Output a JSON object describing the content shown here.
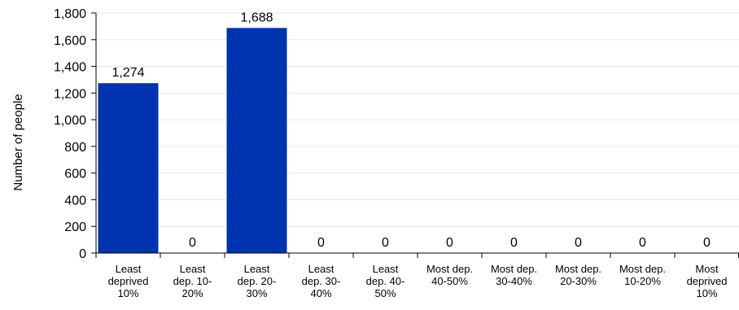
{
  "chart_data": {
    "type": "bar",
    "title": "",
    "xlabel": "",
    "ylabel": "Number of people",
    "ylim": [
      0,
      1800
    ],
    "ytick_step": 200,
    "ytick_labels": [
      "0",
      "200",
      "400",
      "600",
      "800",
      "1,000",
      "1,200",
      "1,400",
      "1,600",
      "1,800"
    ],
    "grid": true,
    "legend": "none",
    "bar_color": "#0033b0",
    "categories": [
      [
        "Least",
        "deprived",
        "10%"
      ],
      [
        "Least",
        "dep. 10-",
        "20%"
      ],
      [
        "Least",
        "dep. 20-",
        "30%"
      ],
      [
        "Least",
        "dep. 30-",
        "40%"
      ],
      [
        "Least",
        "dep. 40-",
        "50%"
      ],
      [
        "Most dep.",
        "40-50%"
      ],
      [
        "Most dep.",
        "30-40%"
      ],
      [
        "Most dep.",
        "20-30%"
      ],
      [
        "Most dep.",
        "10-20%"
      ],
      [
        "Most",
        "deprived",
        "10%"
      ]
    ],
    "values": [
      1274,
      0,
      1688,
      0,
      0,
      0,
      0,
      0,
      0,
      0
    ],
    "data_labels": [
      "1,274",
      "0",
      "1,688",
      "0",
      "0",
      "0",
      "0",
      "0",
      "0",
      "0"
    ]
  }
}
